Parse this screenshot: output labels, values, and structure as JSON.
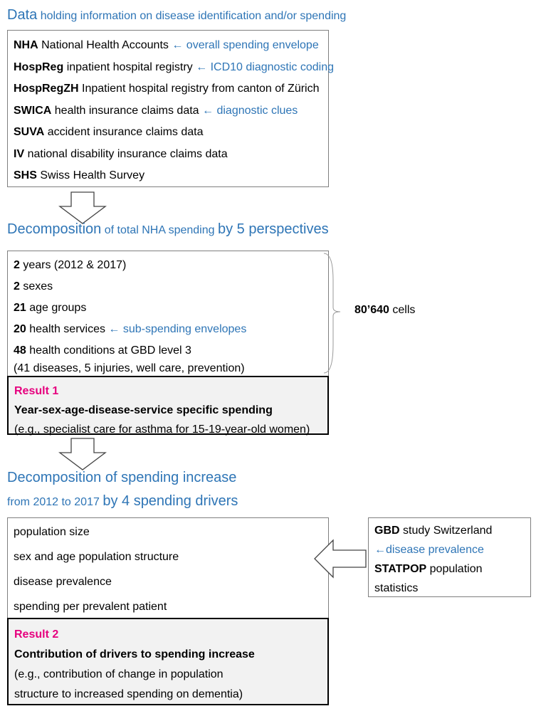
{
  "data_section": {
    "title_bold": "Data",
    "title_rest": "holding information on disease identification and/or spending",
    "items": [
      {
        "code": "NHA",
        "desc": "National Health Accounts",
        "note": "← overall spending envelope"
      },
      {
        "code": "HospReg",
        "desc": "inpatient hospital registry",
        "note": "← ICD10 diagnostic coding"
      },
      {
        "code": "HospRegZH",
        "desc": "Inpatient hospital registry from canton of Zürich"
      },
      {
        "code": "SWICA",
        "desc": "health insurance claims data",
        "note": "← diagnostic clues"
      },
      {
        "code": "SUVA",
        "desc": "accident insurance claims data"
      },
      {
        "code": "IV",
        "desc": "national disability insurance claims data"
      },
      {
        "code": "SHS",
        "desc": "Swiss Health Survey"
      }
    ]
  },
  "decomposition_section": {
    "title_bold": "Decomposition",
    "title_mid": "of total NHA spending",
    "title_end": "by 5 perspectives",
    "items": [
      {
        "num": "2",
        "text": "years (2012 & 2017)"
      },
      {
        "num": "2",
        "text": "sexes"
      },
      {
        "num": "21",
        "text": "age groups"
      },
      {
        "num": "20",
        "text": "health services",
        "note": "← sub-spending envelopes"
      },
      {
        "num": "48",
        "text": "health conditions at GBD level 3"
      }
    ],
    "footnote": "(41 diseases, 5 injuries, well care, prevention)",
    "cells_num": "80’640",
    "cells_text": "cells",
    "result": {
      "label": "Result 1",
      "title": "Year-sex-age-disease-service specific spending",
      "detail": "(e.g., specialist care for asthma for 15-19-year-old women)"
    }
  },
  "increase_section": {
    "title_line1": "Decomposition of spending increase",
    "title_line2_small": "from 2012 to 2017",
    "title_line2_big": "by 4 spending drivers",
    "drivers": [
      "population size",
      "sex and age population structure",
      "disease prevalence",
      "spending per prevalent patient"
    ],
    "result": {
      "label": "Result 2",
      "title": "Contribution of drivers to spending increase",
      "detail_lines": [
        "(e.g., contribution of change in population",
        "structure to increased spending on dementia)"
      ]
    },
    "sources": {
      "gbd_code": "GBD",
      "gbd_desc": "study Switzerland",
      "gbd_note": "←disease prevalence",
      "statpop_code": "STATPOP",
      "statpop_desc": "population",
      "statpop_desc2": "statistics"
    }
  }
}
